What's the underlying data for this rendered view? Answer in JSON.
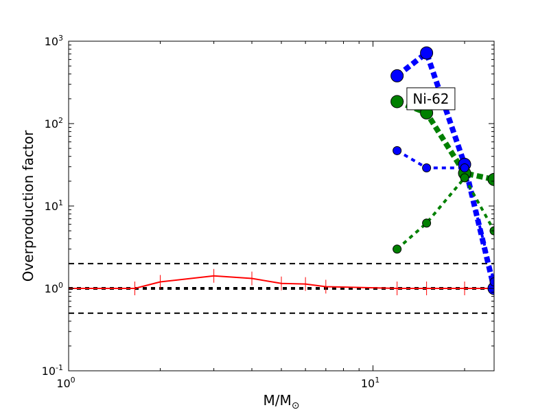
{
  "chart_data": {
    "type": "line",
    "title": "",
    "xlabel": "M/M⊙",
    "ylabel": "Overproduction factor",
    "x_scale": "log",
    "y_scale": "log",
    "xlim": [
      1,
      25
    ],
    "ylim": [
      0.1,
      1000
    ],
    "grid": false,
    "legend": "none",
    "x_ticks": [
      {
        "value": 1,
        "base": "10",
        "exp": "0"
      },
      {
        "value": 10,
        "base": "10",
        "exp": "1"
      }
    ],
    "y_ticks": [
      {
        "value": 0.1,
        "base": "10",
        "exp": "-1"
      },
      {
        "value": 1,
        "base": "10",
        "exp": "0"
      },
      {
        "value": 10,
        "base": "10",
        "exp": "1"
      },
      {
        "value": 100,
        "base": "10",
        "exp": "2"
      },
      {
        "value": 1000,
        "base": "10",
        "exp": "3"
      }
    ],
    "annotation": {
      "text": "Ni-62",
      "x": 15.5,
      "y": 200
    },
    "reference_lines": [
      {
        "y": 2,
        "color": "#000000",
        "style": "dashed",
        "width": 2
      },
      {
        "y": 1,
        "color": "#000000",
        "style": "dashed",
        "width": 4
      },
      {
        "y": 0.5,
        "color": "#000000",
        "style": "dashed",
        "width": 2
      }
    ],
    "series": [
      {
        "color": "#ff0000",
        "style": "solid",
        "width": 2,
        "marker": "tick",
        "x": [
          1.0,
          1.65,
          2.0,
          3.0,
          4.0,
          5.0,
          6.0,
          7.0,
          12.0,
          15.0,
          20.0,
          25.0
        ],
        "y": [
          1.0,
          1.0,
          1.2,
          1.42,
          1.32,
          1.15,
          1.13,
          1.05,
          1.0,
          1.0,
          1.0,
          1.0
        ]
      },
      {
        "color": "#0000ff",
        "style": "dashed",
        "width": 8,
        "marker": "circle",
        "marker_size": 9,
        "x": [
          12,
          15,
          20,
          25
        ],
        "y": [
          380,
          720,
          32,
          1.0
        ]
      },
      {
        "color": "#008000",
        "style": "dashed",
        "width": 8,
        "marker": "circle",
        "marker_size": 9,
        "x": [
          12,
          15,
          20,
          25
        ],
        "y": [
          185,
          135,
          25,
          21
        ]
      },
      {
        "color": "#0000ff",
        "style": "dashed",
        "width": 4,
        "marker": "circle",
        "marker_size": 6,
        "x": [
          12,
          15,
          20,
          25
        ],
        "y": [
          47,
          29,
          29,
          1.2
        ]
      },
      {
        "color": "#008000",
        "style": "dashed",
        "width": 4,
        "marker": "circle",
        "marker_size": 6,
        "x": [
          12,
          15,
          20,
          25
        ],
        "y": [
          3.0,
          6.2,
          22,
          5.0
        ]
      }
    ]
  }
}
